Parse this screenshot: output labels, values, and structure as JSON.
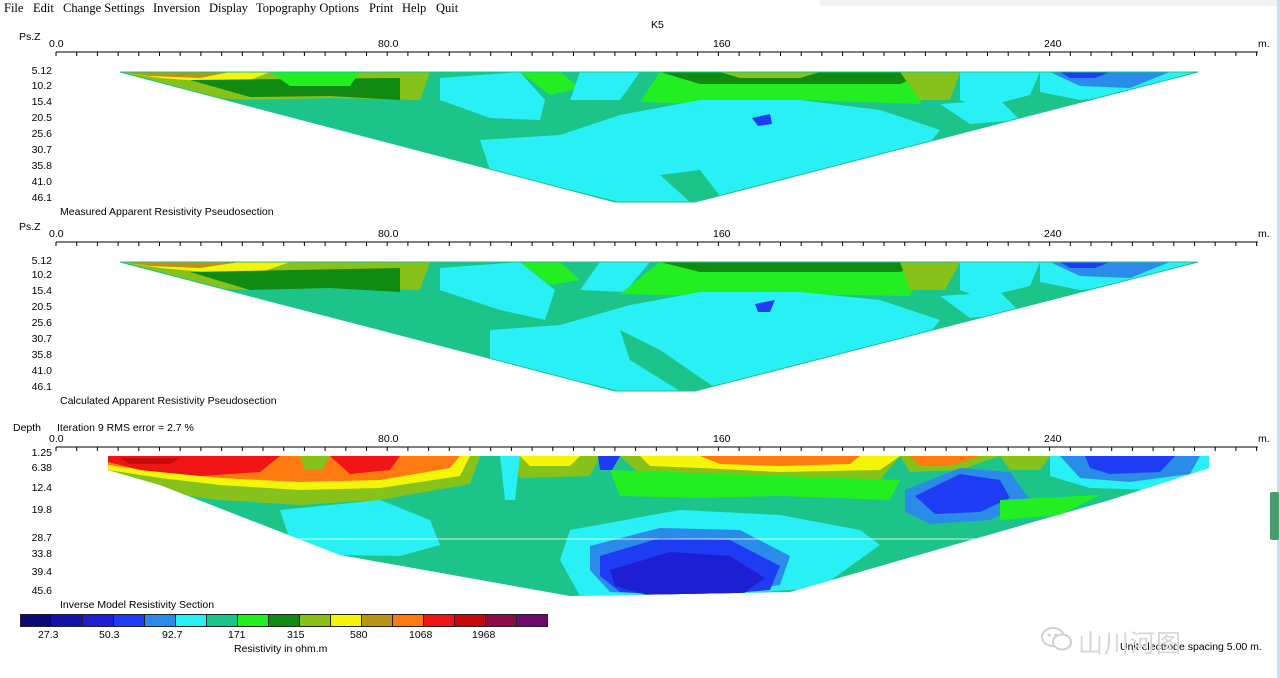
{
  "menu": [
    "File",
    "Edit",
    "Change Settings",
    "Inversion",
    "Display",
    "Topography Options",
    "Print",
    "Help",
    "Quit"
  ],
  "plot_title": "K5",
  "x_unit": "m.",
  "x_ticks": [
    "0.0",
    "80.0",
    "160",
    "240"
  ],
  "panels": [
    {
      "axis_title": "Ps.Z",
      "section_title": "Measured Apparent Resistivity Pseudosection",
      "y_ticks": [
        "5.12",
        "10.2",
        "15.4",
        "20.5",
        "25.6",
        "30.7",
        "35.8",
        "41.0",
        "46.1"
      ]
    },
    {
      "axis_title": "Ps.Z",
      "section_title": "Calculated Apparent Resistivity Pseudosection",
      "y_ticks": [
        "5.12",
        "10.2",
        "15.4",
        "20.5",
        "25.6",
        "30.7",
        "35.8",
        "41.0",
        "46.1"
      ]
    },
    {
      "axis_title": "Depth",
      "iteration_text": "Iteration 9 RMS error = 2.7 %",
      "section_title": "Inverse Model Resistivity Section",
      "y_ticks": [
        "1.25",
        "6.38",
        "12.4",
        "19.8",
        "28.7",
        "33.8",
        "39.4",
        "45.6"
      ]
    }
  ],
  "legend": {
    "colors": [
      "#0a0a78",
      "#1414a8",
      "#1e1ed2",
      "#1f3cf5",
      "#2a8ce8",
      "#28f0f5",
      "#1cc48a",
      "#22ee22",
      "#108a10",
      "#86c21a",
      "#f5f50a",
      "#b8941a",
      "#ff7a10",
      "#f01414",
      "#c40a0a",
      "#8c0a46",
      "#6e0a6e"
    ],
    "values": [
      "27.3",
      "50.3",
      "92.7",
      "171",
      "315",
      "580",
      "1068",
      "1968"
    ],
    "caption": "Resistivity in ohm.m"
  },
  "bottom_note": "Unit electrode spacing 5.00 m.",
  "watermark": "山川河图"
}
